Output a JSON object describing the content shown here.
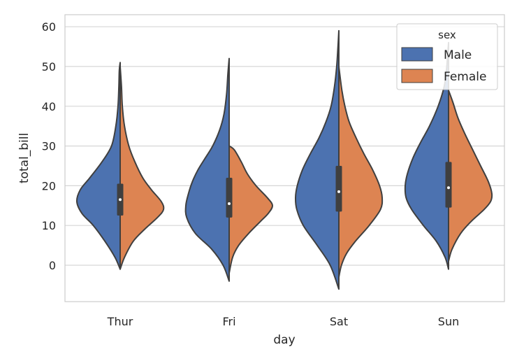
{
  "chart_data": {
    "type": "violin",
    "title": "",
    "xlabel": "day",
    "ylabel": "total_bill",
    "categories": [
      "Thur",
      "Fri",
      "Sat",
      "Sun"
    ],
    "yticks": [
      0,
      10,
      20,
      30,
      40,
      50,
      60
    ],
    "ylim": [
      -9,
      63
    ],
    "grid": true,
    "split": true,
    "legend": {
      "title": "sex",
      "placement": "top-right",
      "entries": [
        {
          "label": "Male",
          "color": "#4c72b0"
        },
        {
          "label": "Female",
          "color": "#dd8452"
        }
      ]
    },
    "colors": {
      "Male": "#4c72b0",
      "Female": "#dd8452",
      "outline": "#3f3f3f",
      "grid": "#d6d6d6",
      "frame": "#cccccc"
    },
    "series": [
      {
        "name": "Male",
        "side": "left",
        "violins": [
          {
            "category": "Thur",
            "profile": [
              [
                -1,
                0
              ],
              [
                2,
                0.12
              ],
              [
                6,
                0.35
              ],
              [
                10,
                0.62
              ],
              [
                13,
                0.88
              ],
              [
                16,
                1
              ],
              [
                19,
                0.92
              ],
              [
                22,
                0.7
              ],
              [
                26,
                0.42
              ],
              [
                30,
                0.2
              ],
              [
                35,
                0.1
              ],
              [
                40,
                0.05
              ],
              [
                45,
                0.03
              ],
              [
                49,
                0.02
              ],
              [
                51,
                0
              ]
            ]
          },
          {
            "category": "Fri",
            "profile": [
              [
                -4,
                0
              ],
              [
                0,
                0.14
              ],
              [
                4,
                0.4
              ],
              [
                8,
                0.78
              ],
              [
                12,
                0.98
              ],
              [
                15,
                1
              ],
              [
                18,
                0.94
              ],
              [
                21,
                0.85
              ],
              [
                24,
                0.72
              ],
              [
                27,
                0.55
              ],
              [
                30,
                0.38
              ],
              [
                34,
                0.22
              ],
              [
                38,
                0.12
              ],
              [
                43,
                0.06
              ],
              [
                48,
                0.03
              ],
              [
                52,
                0
              ]
            ]
          },
          {
            "category": "Sat",
            "profile": [
              [
                -6,
                0
              ],
              [
                0,
                0.2
              ],
              [
                5,
                0.5
              ],
              [
                10,
                0.82
              ],
              [
                14,
                0.97
              ],
              [
                17,
                1
              ],
              [
                20,
                0.96
              ],
              [
                24,
                0.84
              ],
              [
                28,
                0.66
              ],
              [
                32,
                0.46
              ],
              [
                36,
                0.3
              ],
              [
                40,
                0.18
              ],
              [
                45,
                0.1
              ],
              [
                50,
                0.05
              ],
              [
                55,
                0.02
              ],
              [
                59,
                0
              ]
            ]
          },
          {
            "category": "Sun",
            "profile": [
              [
                -1,
                0
              ],
              [
                2,
                0.08
              ],
              [
                6,
                0.28
              ],
              [
                10,
                0.58
              ],
              [
                14,
                0.85
              ],
              [
                17,
                0.98
              ],
              [
                20,
                1
              ],
              [
                23,
                0.95
              ],
              [
                27,
                0.82
              ],
              [
                31,
                0.64
              ],
              [
                35,
                0.44
              ],
              [
                40,
                0.24
              ],
              [
                45,
                0.1
              ],
              [
                50,
                0.04
              ],
              [
                56,
                0
              ]
            ]
          }
        ]
      },
      {
        "name": "Female",
        "side": "right",
        "violins": [
          {
            "category": "Thur",
            "profile": [
              [
                -1,
                0
              ],
              [
                2,
                0.1
              ],
              [
                6,
                0.3
              ],
              [
                9,
                0.56
              ],
              [
                12,
                0.86
              ],
              [
                14,
                1
              ],
              [
                16,
                0.95
              ],
              [
                19,
                0.72
              ],
              [
                22,
                0.52
              ],
              [
                26,
                0.34
              ],
              [
                30,
                0.2
              ],
              [
                35,
                0.1
              ],
              [
                40,
                0.05
              ],
              [
                45,
                0.03
              ],
              [
                50,
                0
              ]
            ]
          },
          {
            "category": "Fri",
            "profile": [
              [
                -2,
                0
              ],
              [
                2,
                0.08
              ],
              [
                5,
                0.22
              ],
              [
                8,
                0.45
              ],
              [
                11,
                0.72
              ],
              [
                13,
                0.9
              ],
              [
                15,
                1
              ],
              [
                17,
                0.88
              ],
              [
                20,
                0.62
              ],
              [
                23,
                0.42
              ],
              [
                26,
                0.28
              ],
              [
                29,
                0.12
              ],
              [
                30,
                0
              ]
            ]
          },
          {
            "category": "Sat",
            "profile": [
              [
                -3,
                0
              ],
              [
                0,
                0.06
              ],
              [
                3,
                0.18
              ],
              [
                6,
                0.38
              ],
              [
                10,
                0.7
              ],
              [
                14,
                0.96
              ],
              [
                17,
                1
              ],
              [
                20,
                0.94
              ],
              [
                24,
                0.78
              ],
              [
                28,
                0.58
              ],
              [
                32,
                0.4
              ],
              [
                36,
                0.24
              ],
              [
                40,
                0.14
              ],
              [
                44,
                0.07
              ],
              [
                50,
                0
              ]
            ]
          },
          {
            "category": "Sun",
            "profile": [
              [
                1,
                0
              ],
              [
                4,
                0.08
              ],
              [
                8,
                0.28
              ],
              [
                11,
                0.52
              ],
              [
                14,
                0.82
              ],
              [
                16,
                0.97
              ],
              [
                18,
                1
              ],
              [
                21,
                0.92
              ],
              [
                25,
                0.74
              ],
              [
                29,
                0.56
              ],
              [
                33,
                0.38
              ],
              [
                37,
                0.22
              ],
              [
                41,
                0.1
              ],
              [
                44,
                0
              ]
            ]
          }
        ]
      }
    ],
    "box": [
      {
        "category": "Thur",
        "q1": 12.5,
        "median": 16.5,
        "q3": 20.5
      },
      {
        "category": "Fri",
        "q1": 12,
        "median": 15.5,
        "q3": 22
      },
      {
        "category": "Sat",
        "q1": 13.5,
        "median": 18.5,
        "q3": 25
      },
      {
        "category": "Sun",
        "q1": 14.5,
        "median": 19.5,
        "q3": 26
      }
    ]
  }
}
